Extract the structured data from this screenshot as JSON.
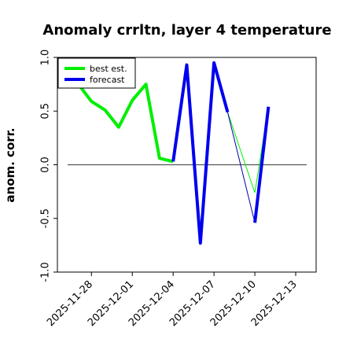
{
  "chart_data": {
    "type": "line",
    "title": "Anomaly crrltn, layer 4 temperature",
    "ylabel": "anom. corr.",
    "xlabel": "",
    "ylim": [
      -1.0,
      1.0
    ],
    "xlim": [
      "2025-11-25T12:00",
      "2025-12-14T12:00"
    ],
    "yticks": [
      -1.0,
      -0.5,
      0.0,
      0.5,
      1.0
    ],
    "ytick_labels": [
      "-1.0",
      "-0.5",
      "0.0",
      "0.5",
      "1.0"
    ],
    "xticks": [
      "2025-11-28",
      "2025-12-01",
      "2025-12-04",
      "2025-12-07",
      "2025-12-10",
      "2025-12-13"
    ],
    "xtick_colors": [
      "#000000",
      "#000000",
      "#228b22",
      "#000000",
      "#000000",
      "#000000"
    ],
    "reference_line": 0.0,
    "legend_position": "top-left",
    "series": [
      {
        "name": "best est.",
        "color": "#00ee00",
        "x": [
          "2025-11-26T12:00",
          "2025-11-28T00:00",
          "2025-11-29T00:00",
          "2025-11-30T00:00",
          "2025-12-01T00:00",
          "2025-12-02T00:00",
          "2025-12-03T00:00",
          "2025-12-04T00:00"
        ],
        "values": [
          0.84,
          0.59,
          0.51,
          0.35,
          0.6,
          0.75,
          0.06,
          0.03
        ]
      },
      {
        "name": "forecast",
        "color": "#0000ee",
        "x": [
          "2025-12-04T00:00",
          "2025-12-05T00:00",
          "2025-12-06T00:00",
          "2025-12-07T00:00",
          "2025-12-08T00:00"
        ],
        "values": [
          0.03,
          0.93,
          -0.73,
          0.95,
          0.49
        ]
      },
      {
        "name": "",
        "color": "#0000ee",
        "x": [
          "2025-12-10T00:00",
          "2025-12-11T00:00"
        ],
        "values": [
          -0.54,
          0.54
        ]
      }
    ],
    "connectors": [
      {
        "color": "#00ee00",
        "x": [
          "2025-12-08T00:00",
          "2025-12-10T00:00",
          "2025-12-11T00:00"
        ],
        "values": [
          0.49,
          -0.26,
          0.54
        ]
      },
      {
        "color": "#0000aa",
        "x": [
          "2025-12-08T00:00",
          "2025-12-10T00:00"
        ],
        "values": [
          0.49,
          -0.54
        ]
      }
    ]
  }
}
